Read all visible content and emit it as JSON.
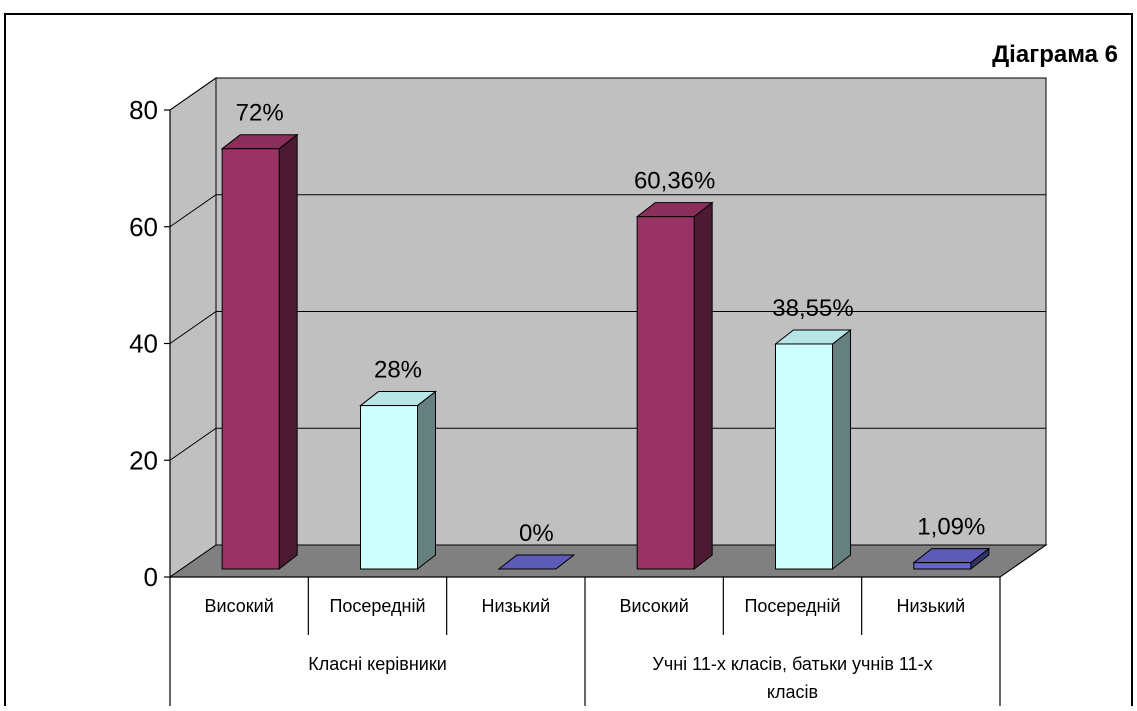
{
  "chart_data": {
    "type": "bar",
    "style": "3d-clustered-column",
    "title": "Діаграма 6",
    "groups": [
      {
        "label": "Класні керівники",
        "lines": [
          "Класні керівники"
        ]
      },
      {
        "label": "Учні 11-х класів, батьки учнів 11-х класів",
        "lines": [
          "Учні 11-х класів, батьки учнів 11-х",
          "класів"
        ]
      }
    ],
    "categories": [
      "Високий",
      "Посередній",
      "Низький",
      "Високий",
      "Посередній",
      "Низький"
    ],
    "values": [
      72,
      28,
      0,
      60.36,
      38.55,
      1.09
    ],
    "data_labels": [
      "72%",
      "28%",
      "0%",
      "60,36%",
      "38,55%",
      "1,09%"
    ],
    "bar_colors": [
      "#993366",
      "#CCFFFF",
      "#6666CC",
      "#993366",
      "#CCFFFF",
      "#6666CC"
    ],
    "bar_side_colors": [
      "#4C1A33",
      "#668080",
      "#333366",
      "#4C1A33",
      "#668080",
      "#333366"
    ],
    "bar_top_colors": [
      "#8A2E5C",
      "#B8E6E6",
      "#5C5CB8",
      "#8A2E5C",
      "#B8E6E6",
      "#5C5CB8"
    ],
    "wall_color": "#C0C0C0",
    "floor_color": "#808080",
    "ylim": [
      0,
      80
    ],
    "yticks": [
      0,
      20,
      40,
      60,
      80
    ],
    "grid": true,
    "legend": "none",
    "xlabel": "",
    "ylabel": ""
  }
}
